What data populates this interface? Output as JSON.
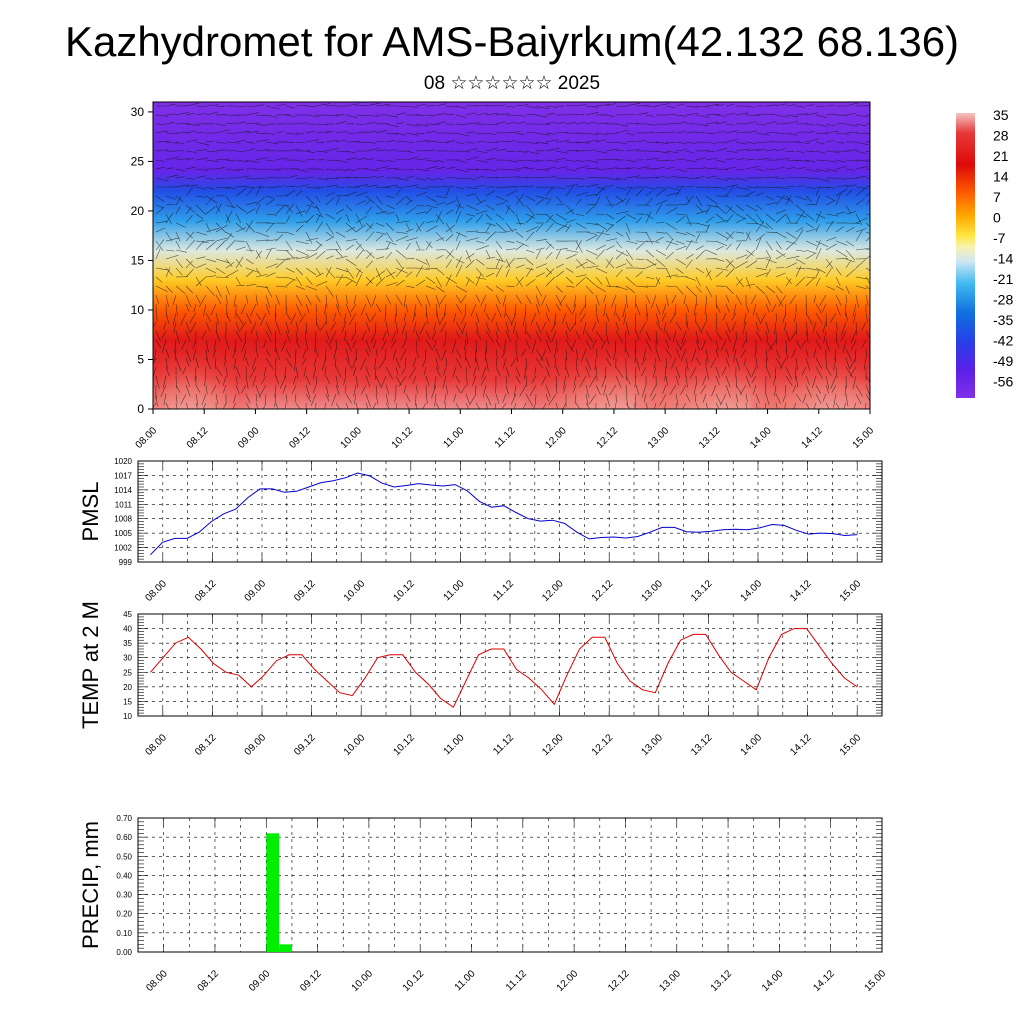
{
  "header": {
    "title": "Kazhydromet for AMS-Baiyrkum(42.132 68.136)",
    "subtitle": "08 ☆☆☆☆☆☆ 2025"
  },
  "chart_data": [
    {
      "type": "heatmap",
      "name": "cross-section",
      "xlabel": "",
      "ylabel": "",
      "x_ticks": [
        "08.00",
        "08.12",
        "09.00",
        "09.12",
        "10.00",
        "10.12",
        "11.00",
        "11.12",
        "12.00",
        "12.12",
        "13.00",
        "13.12",
        "14.00",
        "14.12",
        "15.00"
      ],
      "ylim": [
        0,
        31
      ],
      "y_ticks": [
        0,
        5,
        10,
        15,
        20,
        25,
        30
      ],
      "overlay": "wind-vectors",
      "colorbar": {
        "labels": [
          "35",
          "28",
          "21",
          "14",
          "7",
          "0",
          "-7",
          "-14",
          "-21",
          "-28",
          "-35",
          "-42",
          "-49",
          "-56"
        ],
        "range": [
          -63,
          35
        ]
      },
      "bands": [
        {
          "level": 0,
          "value": 33
        },
        {
          "level": 3,
          "value": 30
        },
        {
          "level": 7,
          "value": 24
        },
        {
          "level": 10,
          "value": 14
        },
        {
          "level": 13,
          "value": 3
        },
        {
          "level": 16,
          "value": -12
        },
        {
          "level": 19,
          "value": -26
        },
        {
          "level": 22,
          "value": -45
        },
        {
          "level": 24,
          "value": -58
        },
        {
          "level": 27,
          "value": -60
        },
        {
          "level": 31,
          "value": -63
        }
      ]
    },
    {
      "type": "line",
      "name": "PMSL",
      "ylabel": "PMSL",
      "color": "#0000cc",
      "ylim": [
        999,
        1020
      ],
      "y_ticks": [
        999,
        1002,
        1005,
        1008,
        1011,
        1014,
        1017,
        1020
      ],
      "x_ticks": [
        "08.00",
        "08.12",
        "09.00",
        "09.12",
        "10.00",
        "10.12",
        "11.00",
        "11.12",
        "12.00",
        "12.12",
        "13.00",
        "13.12",
        "14.00",
        "14.12",
        "15.00"
      ],
      "x_start": -1,
      "values": [
        1000.5,
        1003.1,
        1003.9,
        1003.9,
        1005.2,
        1007.4,
        1009.0,
        1010.0,
        1012.4,
        1014.2,
        1014.2,
        1013.5,
        1013.7,
        1014.6,
        1015.5,
        1015.9,
        1016.5,
        1017.5,
        1016.9,
        1015.4,
        1014.6,
        1014.9,
        1015.3,
        1015.0,
        1014.8,
        1015.1,
        1013.8,
        1011.6,
        1010.4,
        1010.7,
        1009.3,
        1008.0,
        1007.5,
        1007.7,
        1007.0,
        1005.2,
        1003.8,
        1004.1,
        1004.2,
        1004.0,
        1004.3,
        1005.2,
        1006.2,
        1006.2,
        1005.3,
        1005.2,
        1005.4,
        1005.7,
        1005.8,
        1005.7,
        1006.1,
        1006.8,
        1006.6,
        1005.6,
        1004.8,
        1005.0,
        1004.9,
        1004.5,
        1004.7
      ]
    },
    {
      "type": "line",
      "name": "TEMP at 2 M",
      "ylabel": "TEMP at 2 M",
      "color": "#dd0000",
      "ylim": [
        10,
        45
      ],
      "y_ticks": [
        10,
        15,
        20,
        25,
        30,
        35,
        40,
        45
      ],
      "x_ticks": [
        "08.00",
        "08.12",
        "09.00",
        "09.12",
        "10.00",
        "10.12",
        "11.00",
        "11.12",
        "12.00",
        "12.12",
        "13.00",
        "13.12",
        "14.00",
        "14.12",
        "15.00"
      ],
      "x_start": -1,
      "values": [
        25,
        30,
        35,
        37,
        33,
        28,
        25,
        24,
        20,
        24,
        29,
        31,
        31,
        26,
        22,
        18,
        17,
        23,
        30,
        31,
        31,
        25,
        21,
        16,
        13,
        22,
        31,
        33,
        33,
        26,
        23,
        19,
        14,
        24,
        33,
        37,
        37,
        28,
        22,
        19,
        18,
        28,
        36,
        38,
        38,
        31,
        25,
        22,
        19,
        30,
        38,
        40,
        40,
        34,
        28,
        23,
        20
      ]
    },
    {
      "type": "bar",
      "name": "PRECIP, mm",
      "ylabel": "PRECIP, mm",
      "color": "#00ee00",
      "ylim": [
        0,
        0.7
      ],
      "y_ticks": [
        "0.00",
        "0.10",
        "0.20",
        "0.30",
        "0.40",
        "0.50",
        "0.60",
        "0.70"
      ],
      "x_ticks": [
        "08.00",
        "08.12",
        "09.00",
        "09.12",
        "10.00",
        "10.12",
        "11.00",
        "11.12",
        "12.00",
        "12.12",
        "13.00",
        "13.12",
        "14.00",
        "14.12",
        "15.00"
      ],
      "bars": [
        {
          "x_index": 8,
          "value": 0.62
        },
        {
          "x_index": 9,
          "value": 0.04
        }
      ]
    }
  ]
}
